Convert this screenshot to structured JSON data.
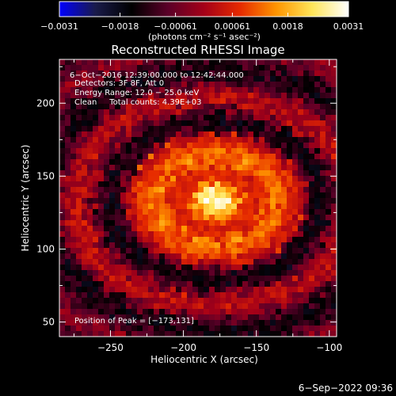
{
  "chart_data": {
    "type": "heatmap",
    "title": "Reconstructed RHESSI Image",
    "xlabel": "Heliocentric X (arcsec)",
    "ylabel": "Heliocentric Y (arcsec)",
    "xlim": [
      -285,
      -95
    ],
    "ylim": [
      40,
      230
    ],
    "xticks": [
      -250,
      -200,
      -150,
      -100
    ],
    "yticks": [
      50,
      100,
      150,
      200
    ],
    "xtick_labels": [
      "−250",
      "−200",
      "−150",
      "−100"
    ],
    "ytick_labels": [
      "50",
      "100",
      "150",
      "200"
    ],
    "colorbar": {
      "min": -0.0031,
      "max": 0.0031,
      "ticks": [
        -0.0031,
        -0.0018,
        -0.00061,
        0.00061,
        0.0018,
        0.0031
      ],
      "tick_labels": [
        "−0.0031",
        "−0.0018",
        "−0.00061",
        "0.00061",
        "0.0018",
        "0.0031"
      ],
      "units_label": "(photons cm⁻² s⁻¹ asec⁻²)",
      "colormap": [
        "#0000ff",
        "#1a1b4a",
        "#000000",
        "#5a0028",
        "#a40018",
        "#e62a00",
        "#ff9500",
        "#ffe55a",
        "#ffffff"
      ]
    },
    "annotations": [
      "6−Oct−2016 12:39:00.000 to 12:42:44.000",
      "Detectors: 3F 8F, Att 0",
      "Energy Range: 12.0 − 25.0 keV",
      "Clean     Total counts: 4.39E+03"
    ],
    "peak_label": "Position of Peak = [−173,131]",
    "peak": {
      "x": -173,
      "y": 131,
      "value": 0.0031
    },
    "background_value": -0.0008,
    "source": {
      "center_x": -178,
      "center_y": 133,
      "sigma_x": 40,
      "sigma_y": 30
    },
    "timestamp": "6−Sep−2022 09:36"
  }
}
